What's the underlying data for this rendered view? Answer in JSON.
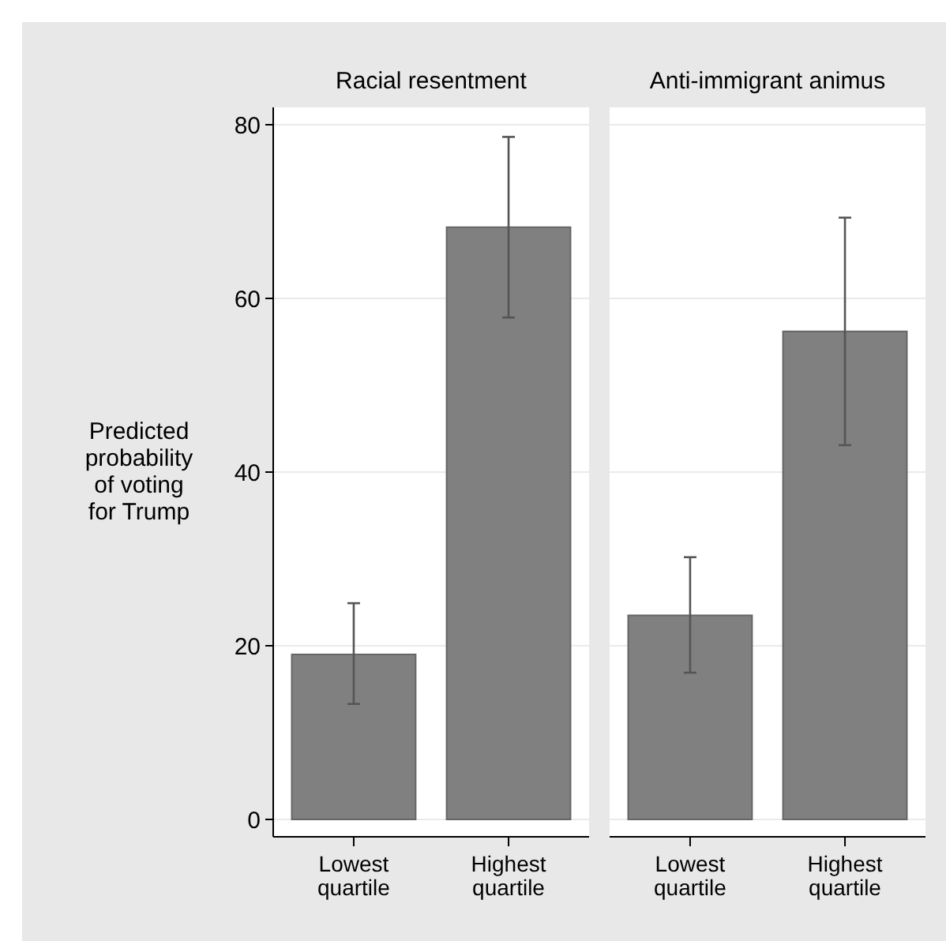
{
  "chart_data": [
    {
      "type": "bar",
      "title": "Racial resentment",
      "ylabel": "Predicted probability of voting for Trump",
      "categories": [
        "Lowest quartile",
        "Highest quartile"
      ],
      "values": [
        19.0,
        68.2
      ],
      "errors": [
        [
          13.3,
          24.9
        ],
        [
          57.8,
          78.6
        ]
      ],
      "color": "#808080",
      "ylim": [
        -2,
        82
      ],
      "yticks": [
        0,
        20,
        40,
        60,
        80
      ],
      "grid": "y"
    },
    {
      "type": "bar",
      "title": "Anti-immigrant animus",
      "categories": [
        "Lowest quartile",
        "Highest quartile"
      ],
      "values": [
        23.5,
        56.2
      ],
      "errors": [
        [
          16.9,
          30.2
        ],
        [
          43.1,
          69.3
        ]
      ],
      "color": "#808080",
      "ylim": [
        -2,
        82
      ],
      "yticks": [
        0,
        20,
        40,
        60,
        80
      ],
      "grid": "y",
      "tick_labels": "x"
    }
  ]
}
